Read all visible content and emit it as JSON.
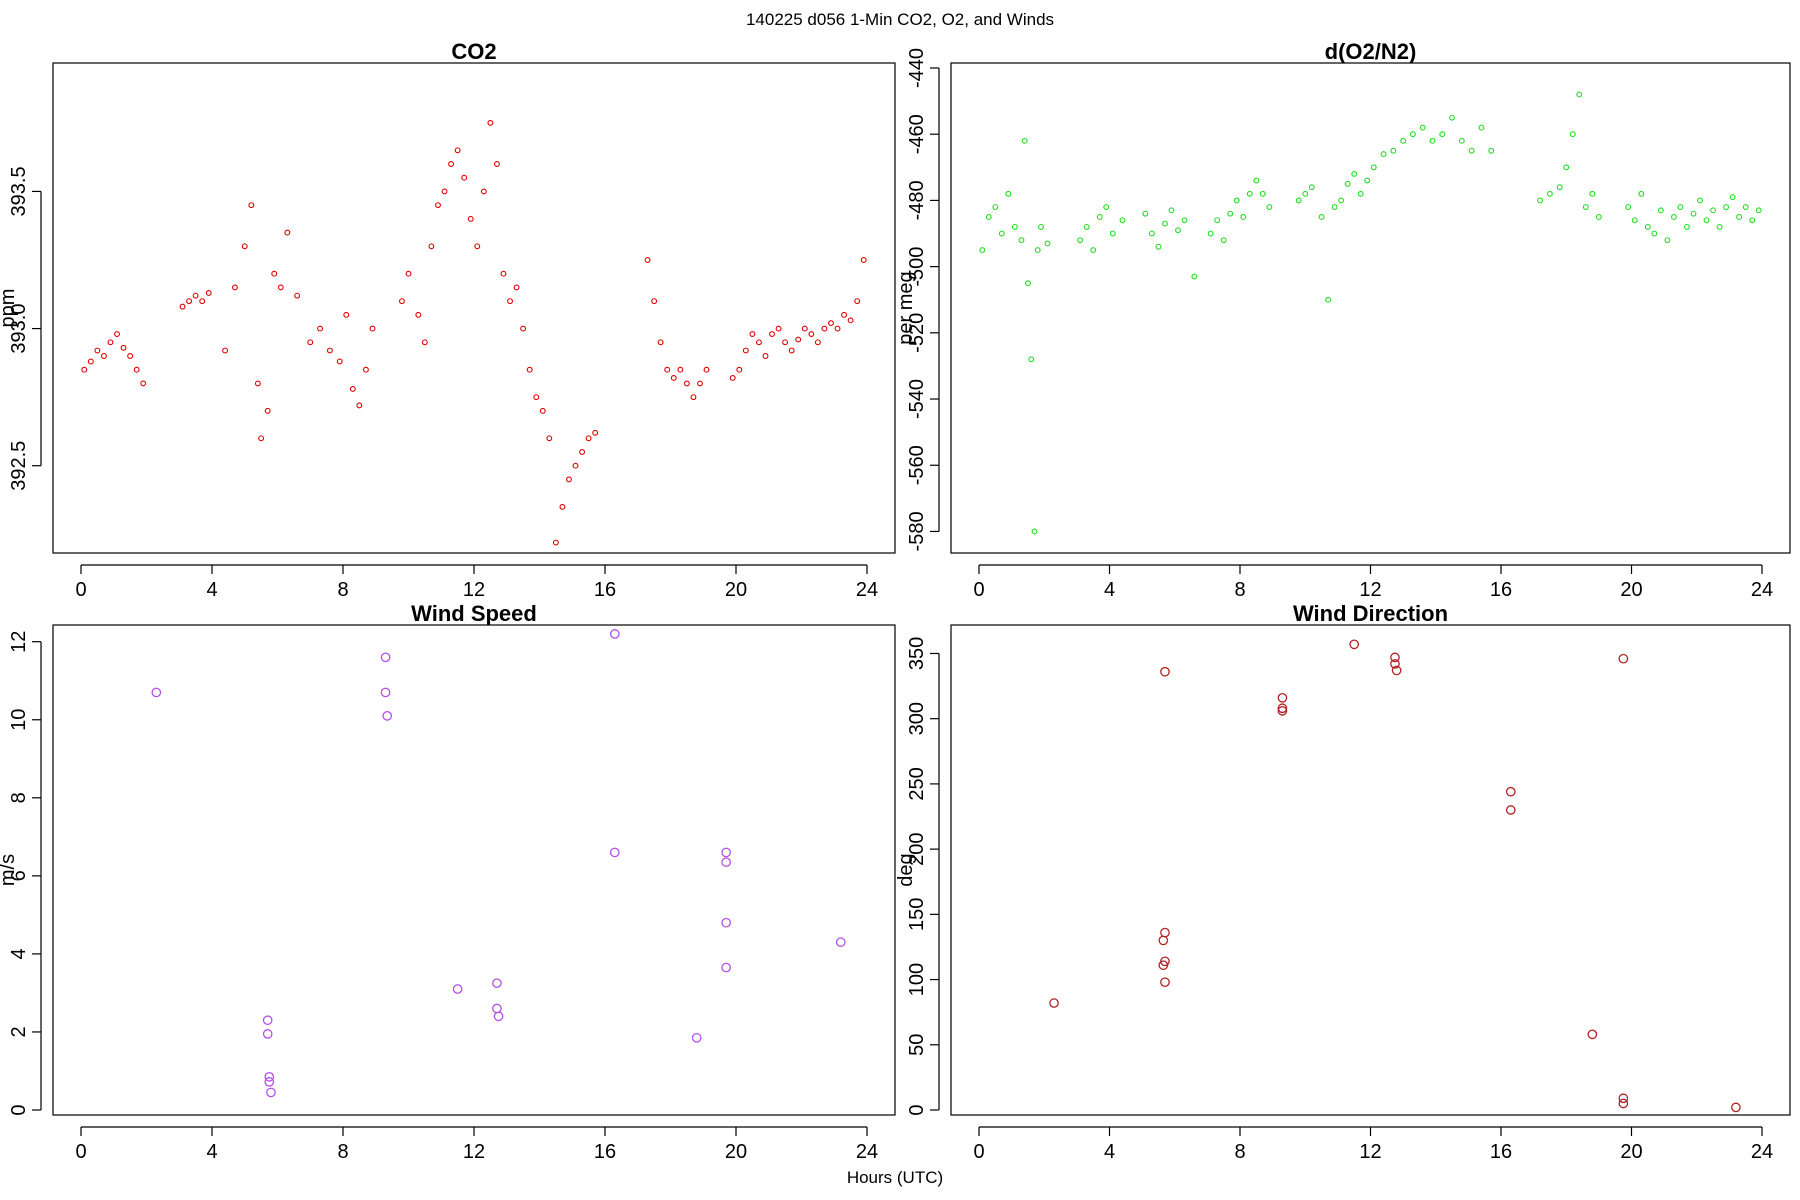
{
  "figure": {
    "suptitle": "140225   d056   1-Min CO2, O2, and Winds",
    "xlabel": "Hours (UTC)"
  },
  "chart_data": [
    {
      "id": "co2",
      "type": "scatter",
      "title": "CO2",
      "xlabel": "",
      "ylabel": "ppm",
      "xlim": [
        0,
        24
      ],
      "ylim": [
        392.2,
        393.95
      ],
      "xticks": [
        0,
        4,
        8,
        12,
        16,
        20,
        24
      ],
      "yticks": [
        392.5,
        393.0,
        393.5
      ],
      "ytick_labels": [
        "392.5",
        "393.0",
        "393.5"
      ],
      "color": "#e00000",
      "series": [
        {
          "points": [
            [
              0.1,
              392.85
            ],
            [
              0.3,
              392.88
            ],
            [
              0.5,
              392.92
            ],
            [
              0.7,
              392.9
            ],
            [
              0.9,
              392.95
            ],
            [
              1.1,
              392.98
            ],
            [
              1.3,
              392.93
            ],
            [
              1.5,
              392.9
            ],
            [
              1.7,
              392.85
            ],
            [
              1.9,
              392.8
            ],
            [
              3.1,
              393.08
            ],
            [
              3.3,
              393.1
            ],
            [
              3.5,
              393.12
            ],
            [
              3.7,
              393.1
            ],
            [
              3.9,
              393.13
            ],
            [
              4.4,
              392.92
            ],
            [
              4.7,
              393.15
            ],
            [
              5.0,
              393.3
            ],
            [
              5.2,
              393.45
            ],
            [
              5.4,
              392.8
            ],
            [
              5.5,
              392.6
            ],
            [
              5.7,
              392.7
            ],
            [
              5.9,
              393.2
            ],
            [
              6.1,
              393.15
            ],
            [
              6.3,
              393.35
            ],
            [
              6.6,
              393.12
            ],
            [
              7.0,
              392.95
            ],
            [
              7.3,
              393.0
            ],
            [
              7.6,
              392.92
            ],
            [
              7.9,
              392.88
            ],
            [
              8.1,
              393.05
            ],
            [
              8.3,
              392.78
            ],
            [
              8.5,
              392.72
            ],
            [
              8.7,
              392.85
            ],
            [
              8.9,
              393.0
            ],
            [
              9.8,
              393.1
            ],
            [
              10.0,
              393.2
            ],
            [
              10.3,
              393.05
            ],
            [
              10.5,
              392.95
            ],
            [
              10.7,
              393.3
            ],
            [
              10.9,
              393.45
            ],
            [
              11.1,
              393.5
            ],
            [
              11.3,
              393.6
            ],
            [
              11.5,
              393.65
            ],
            [
              11.7,
              393.55
            ],
            [
              11.9,
              393.4
            ],
            [
              12.1,
              393.3
            ],
            [
              12.3,
              393.5
            ],
            [
              12.5,
              393.75
            ],
            [
              12.7,
              393.6
            ],
            [
              12.9,
              393.2
            ],
            [
              13.1,
              393.1
            ],
            [
              13.3,
              393.15
            ],
            [
              13.5,
              393.0
            ],
            [
              13.7,
              392.85
            ],
            [
              13.9,
              392.75
            ],
            [
              14.1,
              392.7
            ],
            [
              14.3,
              392.6
            ],
            [
              14.5,
              392.22
            ],
            [
              14.7,
              392.35
            ],
            [
              14.9,
              392.45
            ],
            [
              15.1,
              392.5
            ],
            [
              15.3,
              392.55
            ],
            [
              15.5,
              392.6
            ],
            [
              15.7,
              392.62
            ],
            [
              17.3,
              393.25
            ],
            [
              17.5,
              393.1
            ],
            [
              17.7,
              392.95
            ],
            [
              17.9,
              392.85
            ],
            [
              18.1,
              392.82
            ],
            [
              18.3,
              392.85
            ],
            [
              18.5,
              392.8
            ],
            [
              18.7,
              392.75
            ],
            [
              18.9,
              392.8
            ],
            [
              19.1,
              392.85
            ],
            [
              19.9,
              392.82
            ],
            [
              20.1,
              392.85
            ],
            [
              20.3,
              392.92
            ],
            [
              20.5,
              392.98
            ],
            [
              20.7,
              392.95
            ],
            [
              20.9,
              392.9
            ],
            [
              21.1,
              392.98
            ],
            [
              21.3,
              393.0
            ],
            [
              21.5,
              392.95
            ],
            [
              21.7,
              392.92
            ],
            [
              21.9,
              392.96
            ],
            [
              22.1,
              393.0
            ],
            [
              22.3,
              392.98
            ],
            [
              22.5,
              392.95
            ],
            [
              22.7,
              393.0
            ],
            [
              22.9,
              393.02
            ],
            [
              23.1,
              393.0
            ],
            [
              23.3,
              393.05
            ],
            [
              23.5,
              393.03
            ],
            [
              23.7,
              393.1
            ],
            [
              23.9,
              393.25
            ]
          ]
        }
      ]
    },
    {
      "id": "o2",
      "type": "scatter",
      "title": "d(O2/N2)",
      "xlabel": "",
      "ylabel": "per meg",
      "xlim": [
        0,
        24
      ],
      "ylim": [
        -585,
        -440
      ],
      "xticks": [
        0,
        4,
        8,
        12,
        16,
        20,
        24
      ],
      "yticks": [
        -580,
        -560,
        -540,
        -520,
        -500,
        -480,
        -460,
        -440
      ],
      "ytick_labels": [
        "-580",
        "-560",
        "-540",
        "-520",
        "-500",
        "-480",
        "-460",
        "-440"
      ],
      "color": "#22dd22",
      "series": [
        {
          "points": [
            [
              0.1,
              -495
            ],
            [
              0.3,
              -485
            ],
            [
              0.5,
              -482
            ],
            [
              0.7,
              -490
            ],
            [
              0.9,
              -478
            ],
            [
              1.1,
              -488
            ],
            [
              1.3,
              -492
            ],
            [
              1.4,
              -462
            ],
            [
              1.5,
              -505
            ],
            [
              1.6,
              -528
            ],
            [
              1.7,
              -580
            ],
            [
              1.8,
              -495
            ],
            [
              1.9,
              -488
            ],
            [
              2.1,
              -493
            ],
            [
              3.1,
              -492
            ],
            [
              3.3,
              -488
            ],
            [
              3.5,
              -495
            ],
            [
              3.7,
              -485
            ],
            [
              3.9,
              -482
            ],
            [
              4.1,
              -490
            ],
            [
              4.4,
              -486
            ],
            [
              5.1,
              -484
            ],
            [
              5.3,
              -490
            ],
            [
              5.5,
              -494
            ],
            [
              5.7,
              -487
            ],
            [
              5.9,
              -483
            ],
            [
              6.1,
              -489
            ],
            [
              6.3,
              -486
            ],
            [
              6.6,
              -503
            ],
            [
              7.1,
              -490
            ],
            [
              7.3,
              -486
            ],
            [
              7.5,
              -492
            ],
            [
              7.7,
              -484
            ],
            [
              7.9,
              -480
            ],
            [
              8.1,
              -485
            ],
            [
              8.3,
              -478
            ],
            [
              8.5,
              -474
            ],
            [
              8.7,
              -478
            ],
            [
              8.9,
              -482
            ],
            [
              9.8,
              -480
            ],
            [
              10.0,
              -478
            ],
            [
              10.2,
              -476
            ],
            [
              10.5,
              -485
            ],
            [
              10.7,
              -510
            ],
            [
              10.9,
              -482
            ],
            [
              11.1,
              -480
            ],
            [
              11.3,
              -475
            ],
            [
              11.5,
              -472
            ],
            [
              11.7,
              -478
            ],
            [
              11.9,
              -474
            ],
            [
              12.1,
              -470
            ],
            [
              12.4,
              -466
            ],
            [
              12.7,
              -465
            ],
            [
              13.0,
              -462
            ],
            [
              13.3,
              -460
            ],
            [
              13.6,
              -458
            ],
            [
              13.9,
              -462
            ],
            [
              14.2,
              -460
            ],
            [
              14.5,
              -455
            ],
            [
              14.8,
              -462
            ],
            [
              15.1,
              -465
            ],
            [
              15.4,
              -458
            ],
            [
              15.7,
              -465
            ],
            [
              17.2,
              -480
            ],
            [
              17.5,
              -478
            ],
            [
              17.8,
              -476
            ],
            [
              18.0,
              -470
            ],
            [
              18.2,
              -460
            ],
            [
              18.4,
              -448
            ],
            [
              18.6,
              -482
            ],
            [
              18.8,
              -478
            ],
            [
              19.0,
              -485
            ],
            [
              19.9,
              -482
            ],
            [
              20.1,
              -486
            ],
            [
              20.3,
              -478
            ],
            [
              20.5,
              -488
            ],
            [
              20.7,
              -490
            ],
            [
              20.9,
              -483
            ],
            [
              21.1,
              -492
            ],
            [
              21.3,
              -485
            ],
            [
              21.5,
              -482
            ],
            [
              21.7,
              -488
            ],
            [
              21.9,
              -484
            ],
            [
              22.1,
              -480
            ],
            [
              22.3,
              -486
            ],
            [
              22.5,
              -483
            ],
            [
              22.7,
              -488
            ],
            [
              22.9,
              -482
            ],
            [
              23.1,
              -479
            ],
            [
              23.3,
              -485
            ],
            [
              23.5,
              -482
            ],
            [
              23.7,
              -486
            ],
            [
              23.9,
              -483
            ]
          ]
        }
      ]
    },
    {
      "id": "wind_speed",
      "type": "scatter",
      "title": "Wind Speed",
      "xlabel": "",
      "ylabel": "m/s",
      "xlim": [
        0,
        24
      ],
      "ylim": [
        0,
        12.3
      ],
      "xticks": [
        0,
        4,
        8,
        12,
        16,
        20,
        24
      ],
      "yticks": [
        0,
        2,
        4,
        6,
        8,
        10,
        12
      ],
      "ytick_labels": [
        "0",
        "2",
        "4",
        "6",
        "8",
        "10",
        "12"
      ],
      "color": "#b44fe8",
      "series": [
        {
          "points": [
            [
              2.3,
              10.7
            ],
            [
              5.7,
              2.3
            ],
            [
              5.7,
              1.95
            ],
            [
              5.75,
              0.85
            ],
            [
              5.75,
              0.72
            ],
            [
              5.8,
              0.45
            ],
            [
              9.3,
              11.6
            ],
            [
              9.3,
              10.7
            ],
            [
              9.35,
              10.1
            ],
            [
              11.5,
              3.1
            ],
            [
              12.7,
              3.25
            ],
            [
              12.7,
              2.6
            ],
            [
              12.75,
              2.4
            ],
            [
              16.3,
              12.2
            ],
            [
              16.3,
              6.6
            ],
            [
              18.8,
              1.85
            ],
            [
              19.7,
              6.6
            ],
            [
              19.7,
              6.35
            ],
            [
              19.7,
              4.8
            ],
            [
              19.7,
              3.65
            ],
            [
              23.2,
              4.3
            ]
          ]
        }
      ]
    },
    {
      "id": "wind_direction",
      "type": "scatter",
      "title": "Wind Direction",
      "xlabel": "",
      "ylabel": "deg",
      "xlim": [
        0,
        24
      ],
      "ylim": [
        0,
        368
      ],
      "xticks": [
        0,
        4,
        8,
        12,
        16,
        20,
        24
      ],
      "yticks": [
        0,
        50,
        100,
        150,
        200,
        250,
        300,
        350
      ],
      "ytick_labels": [
        "0",
        "50",
        "100",
        "150",
        "200",
        "250",
        "300",
        "350"
      ],
      "color": "#b22222",
      "series": [
        {
          "points": [
            [
              2.3,
              82
            ],
            [
              5.7,
              336
            ],
            [
              5.7,
              136
            ],
            [
              5.65,
              130
            ],
            [
              5.7,
              114
            ],
            [
              5.65,
              111
            ],
            [
              5.7,
              98
            ],
            [
              9.3,
              316
            ],
            [
              9.3,
              308
            ],
            [
              9.3,
              306
            ],
            [
              11.5,
              357
            ],
            [
              12.75,
              347
            ],
            [
              12.75,
              342
            ],
            [
              12.8,
              337
            ],
            [
              16.3,
              244
            ],
            [
              16.3,
              230
            ],
            [
              18.8,
              58
            ],
            [
              19.75,
              346
            ],
            [
              19.75,
              9
            ],
            [
              19.75,
              5
            ],
            [
              23.2,
              2
            ]
          ]
        }
      ]
    }
  ]
}
